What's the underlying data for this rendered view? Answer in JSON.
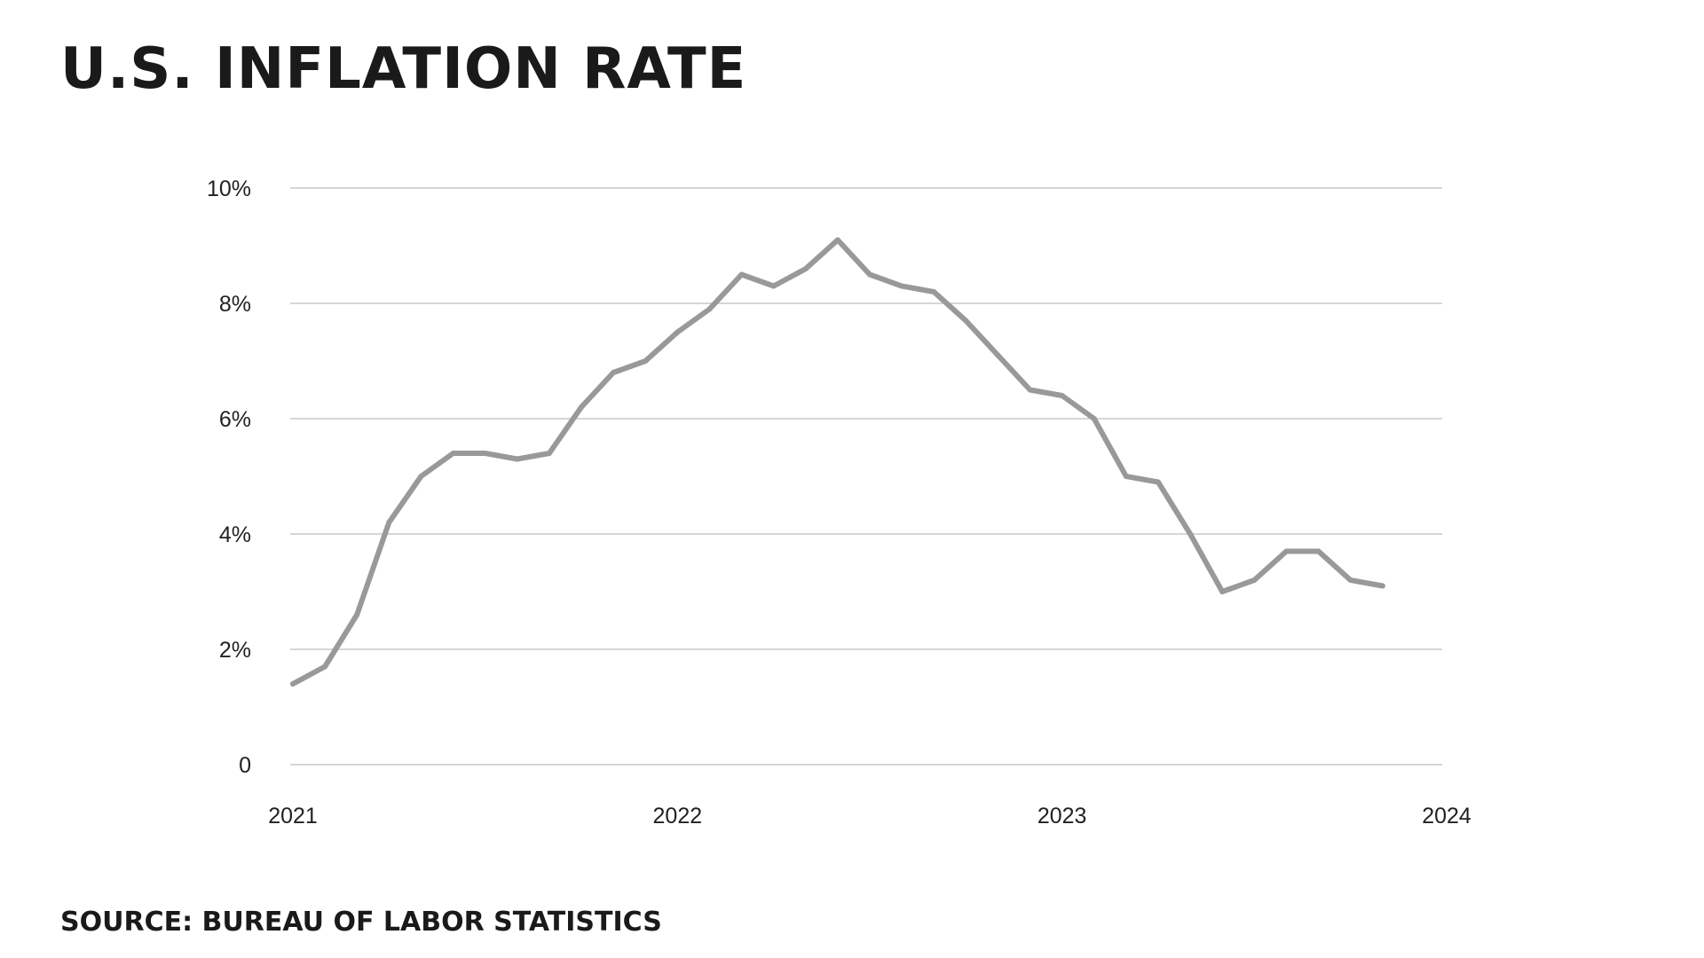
{
  "title": "U.S. INFLATION RATE",
  "source": "SOURCE: BUREAU OF LABOR STATISTICS",
  "colors": {
    "line": "#999999",
    "grid": "#d6d6d6",
    "text": "#1a1a1a"
  },
  "chart_data": {
    "type": "line",
    "title": "U.S. INFLATION RATE",
    "xlabel": "",
    "ylabel": "",
    "ylim": [
      0,
      10
    ],
    "yticks": [
      {
        "value": 0,
        "label": "0"
      },
      {
        "value": 2,
        "label": "2%"
      },
      {
        "value": 4,
        "label": "4%"
      },
      {
        "value": 6,
        "label": "6%"
      },
      {
        "value": 8,
        "label": "8%"
      },
      {
        "value": 10,
        "label": "10%"
      }
    ],
    "xticks": [
      "2021",
      "2022",
      "2023",
      "2024"
    ],
    "xlim": [
      "2021-01",
      "2024-01"
    ],
    "grid": "horizontal",
    "series": [
      {
        "x": [
          "2021-01",
          "2021-02",
          "2021-03",
          "2021-04",
          "2021-05",
          "2021-06",
          "2021-07",
          "2021-08",
          "2021-09",
          "2021-10",
          "2021-11",
          "2021-12",
          "2022-01",
          "2022-02",
          "2022-03",
          "2022-04",
          "2022-05",
          "2022-06",
          "2022-07",
          "2022-08",
          "2022-09",
          "2022-10",
          "2022-11",
          "2022-12",
          "2023-01",
          "2023-02",
          "2023-03",
          "2023-04",
          "2023-05",
          "2023-06",
          "2023-07",
          "2023-08",
          "2023-09",
          "2023-10",
          "2023-11"
        ],
        "values": [
          1.4,
          1.7,
          2.6,
          4.2,
          5.0,
          5.4,
          5.4,
          5.3,
          5.4,
          6.2,
          6.8,
          7.0,
          7.5,
          7.9,
          8.5,
          8.3,
          8.6,
          9.1,
          8.5,
          8.3,
          8.2,
          7.7,
          7.1,
          6.5,
          6.4,
          6.0,
          5.0,
          4.9,
          4.0,
          3.0,
          3.2,
          3.7,
          3.7,
          3.2,
          3.1
        ]
      }
    ]
  }
}
